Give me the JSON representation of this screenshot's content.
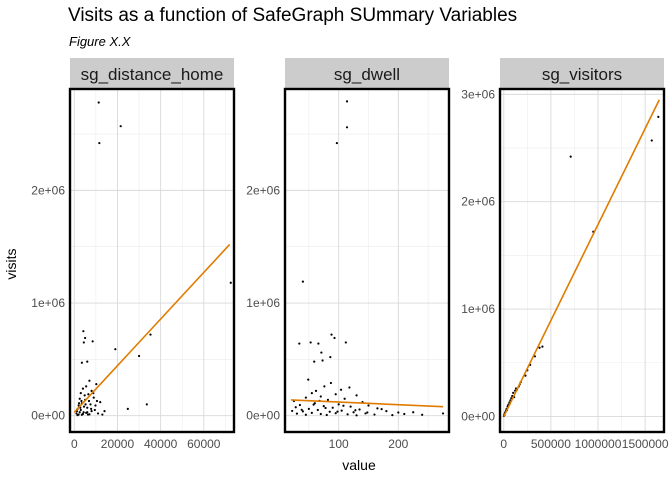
{
  "title": "Visits as a function of SafeGraph SUmmary Variables",
  "subtitle": "Figure X.X",
  "chart_data": {
    "type": "scatter",
    "xlabel": "value",
    "ylabel": "visits",
    "grid": true,
    "colors": {
      "points": "#000000",
      "fit_line": "#e07b00",
      "strip": "#cccccc",
      "grid": "#d9d9d9",
      "axis_text": "#4d4d4d"
    },
    "panels": [
      {
        "name": "sg_distance_home",
        "xlim": [
          -2000,
          74000
        ],
        "ylim": [
          -145000,
          2900000
        ],
        "xticks": [
          0,
          20000,
          40000,
          60000
        ],
        "xtick_labels": [
          "0",
          "20000",
          "40000",
          "60000"
        ],
        "yticks": [
          0,
          1000000,
          2000000
        ],
        "ytick_labels": [
          "0e+00",
          "1e+06",
          "2e+06"
        ],
        "fit": {
          "x": [
            0,
            72000
          ],
          "y": [
            30000,
            1520000
          ]
        },
        "points": [
          [
            11300,
            2780000
          ],
          [
            21500,
            2570000
          ],
          [
            11600,
            2420000
          ],
          [
            72500,
            1180000
          ],
          [
            35300,
            720000
          ],
          [
            4200,
            750000
          ],
          [
            5000,
            690000
          ],
          [
            8500,
            660000
          ],
          [
            4400,
            650000
          ],
          [
            19000,
            590000
          ],
          [
            30000,
            530000
          ],
          [
            6000,
            480000
          ],
          [
            3500,
            470000
          ],
          [
            33600,
            100000
          ],
          [
            24800,
            60000
          ],
          [
            10200,
            280000
          ],
          [
            7000,
            310000
          ],
          [
            5500,
            260000
          ],
          [
            4000,
            240000
          ],
          [
            8000,
            220000
          ],
          [
            3000,
            200000
          ],
          [
            6500,
            190000
          ],
          [
            9000,
            160000
          ],
          [
            2500,
            150000
          ],
          [
            5000,
            140000
          ],
          [
            12000,
            120000
          ],
          [
            3500,
            110000
          ],
          [
            7500,
            100000
          ],
          [
            2000,
            90000
          ],
          [
            4500,
            80000
          ],
          [
            6000,
            70000
          ],
          [
            1500,
            60000
          ],
          [
            3000,
            50000
          ],
          [
            8000,
            40000
          ],
          [
            2500,
            30000
          ],
          [
            5500,
            25000
          ],
          [
            1000,
            20000
          ],
          [
            4000,
            15000
          ],
          [
            7000,
            12000
          ],
          [
            2000,
            10000
          ],
          [
            3500,
            8000
          ],
          [
            1500,
            5000
          ],
          [
            6000,
            30000
          ],
          [
            9500,
            50000
          ],
          [
            11000,
            20000
          ],
          [
            13000,
            10000
          ],
          [
            4800,
            180000
          ],
          [
            6800,
            130000
          ],
          [
            9800,
            90000
          ],
          [
            1200,
            40000
          ],
          [
            2800,
            70000
          ],
          [
            5200,
            100000
          ],
          [
            7800,
            60000
          ],
          [
            3300,
            130000
          ],
          [
            14000,
            40000
          ],
          [
            2200,
            110000
          ],
          [
            8800,
            200000
          ],
          [
            10500,
            130000
          ],
          [
            4300,
            30000
          ],
          [
            6300,
            10000
          ]
        ]
      },
      {
        "name": "sg_dwell",
        "xlim": [
          10,
          285
        ],
        "ylim": [
          -145000,
          2900000
        ],
        "xticks": [
          100,
          200
        ],
        "xtick_labels": [
          "100",
          "200"
        ],
        "yticks": [
          0,
          1000000,
          2000000
        ],
        "ytick_labels": [
          "0e+00",
          "1e+06",
          "2e+06"
        ],
        "fit": {
          "x": [
            20,
            275
          ],
          "y": [
            140000,
            80000
          ]
        },
        "points": [
          [
            114,
            2790000
          ],
          [
            114,
            2560000
          ],
          [
            97,
            2420000
          ],
          [
            40,
            1190000
          ],
          [
            88,
            720000
          ],
          [
            93,
            690000
          ],
          [
            34,
            640000
          ],
          [
            53,
            650000
          ],
          [
            66,
            640000
          ],
          [
            112,
            650000
          ],
          [
            71,
            560000
          ],
          [
            86,
            520000
          ],
          [
            73,
            490000
          ],
          [
            59,
            480000
          ],
          [
            49,
            320000
          ],
          [
            87,
            290000
          ],
          [
            76,
            260000
          ],
          [
            104,
            230000
          ],
          [
            62,
            220000
          ],
          [
            118,
            250000
          ],
          [
            55,
            200000
          ],
          [
            95,
            190000
          ],
          [
            130,
            180000
          ],
          [
            70,
            170000
          ],
          [
            45,
            160000
          ],
          [
            110,
            150000
          ],
          [
            82,
            140000
          ],
          [
            25,
            130000
          ],
          [
            140,
            120000
          ],
          [
            60,
            110000
          ],
          [
            100,
            100000
          ],
          [
            35,
            95000
          ],
          [
            150,
            90000
          ],
          [
            75,
            85000
          ],
          [
            120,
            80000
          ],
          [
            28,
            75000
          ],
          [
            90,
            70000
          ],
          [
            165,
            65000
          ],
          [
            50,
            60000
          ],
          [
            135,
            55000
          ],
          [
            65,
            50000
          ],
          [
            105,
            45000
          ],
          [
            180,
            40000
          ],
          [
            40,
            38000
          ],
          [
            85,
            35000
          ],
          [
            125,
            30000
          ],
          [
            200,
            28000
          ],
          [
            55,
            25000
          ],
          [
            95,
            22000
          ],
          [
            145,
            20000
          ],
          [
            30,
            18000
          ],
          [
            70,
            15000
          ],
          [
            115,
            12000
          ],
          [
            160,
            10000
          ],
          [
            45,
            8000
          ],
          [
            80,
            6000
          ],
          [
            190,
            5000
          ],
          [
            130,
            3000
          ],
          [
            210,
            15000
          ],
          [
            225,
            30000
          ],
          [
            240,
            8000
          ],
          [
            275,
            20000
          ],
          [
            38,
            52000
          ],
          [
            58,
            98000
          ],
          [
            78,
            68000
          ],
          [
            98,
            36000
          ],
          [
            108,
            88000
          ],
          [
            128,
            48000
          ],
          [
            148,
            28000
          ],
          [
            172,
            58000
          ],
          [
            22,
            42000
          ],
          [
            68,
            132000
          ]
        ]
      },
      {
        "name": "sg_visitors",
        "xlim": [
          -40000,
          1700000
        ],
        "ylim": [
          -145000,
          3050000
        ],
        "xticks": [
          0,
          500000,
          1000000,
          1500000
        ],
        "xtick_labels": [
          "0",
          "500000",
          "1000000",
          "1500000"
        ],
        "yticks": [
          0,
          1000000,
          2000000,
          3000000
        ],
        "ytick_labels": [
          "0e+00",
          "1e+06",
          "2e+06",
          "3e+06"
        ],
        "fit": {
          "x": [
            0,
            1650000
          ],
          "y": [
            0,
            2950000
          ]
        },
        "points": [
          [
            1640000,
            2790000
          ],
          [
            1570000,
            2570000
          ],
          [
            710000,
            2420000
          ],
          [
            950000,
            1720000
          ],
          [
            410000,
            650000
          ],
          [
            380000,
            640000
          ],
          [
            330000,
            560000
          ],
          [
            280000,
            480000
          ],
          [
            250000,
            430000
          ],
          [
            230000,
            380000
          ],
          [
            180000,
            320000
          ],
          [
            160000,
            280000
          ],
          [
            140000,
            250000
          ],
          [
            120000,
            240000
          ],
          [
            100000,
            220000
          ],
          [
            90000,
            190000
          ],
          [
            80000,
            170000
          ],
          [
            70000,
            150000
          ],
          [
            60000,
            130000
          ],
          [
            50000,
            110000
          ],
          [
            40000,
            90000
          ],
          [
            30000,
            70000
          ],
          [
            25000,
            55000
          ],
          [
            20000,
            45000
          ],
          [
            15000,
            35000
          ],
          [
            10000,
            25000
          ],
          [
            8000,
            18000
          ],
          [
            5000,
            12000
          ],
          [
            3000,
            8000
          ],
          [
            2000,
            5000
          ],
          [
            110000,
            180000
          ],
          [
            130000,
            260000
          ],
          [
            170000,
            300000
          ],
          [
            35000,
            60000
          ],
          [
            45000,
            100000
          ],
          [
            65000,
            120000
          ]
        ]
      }
    ]
  }
}
